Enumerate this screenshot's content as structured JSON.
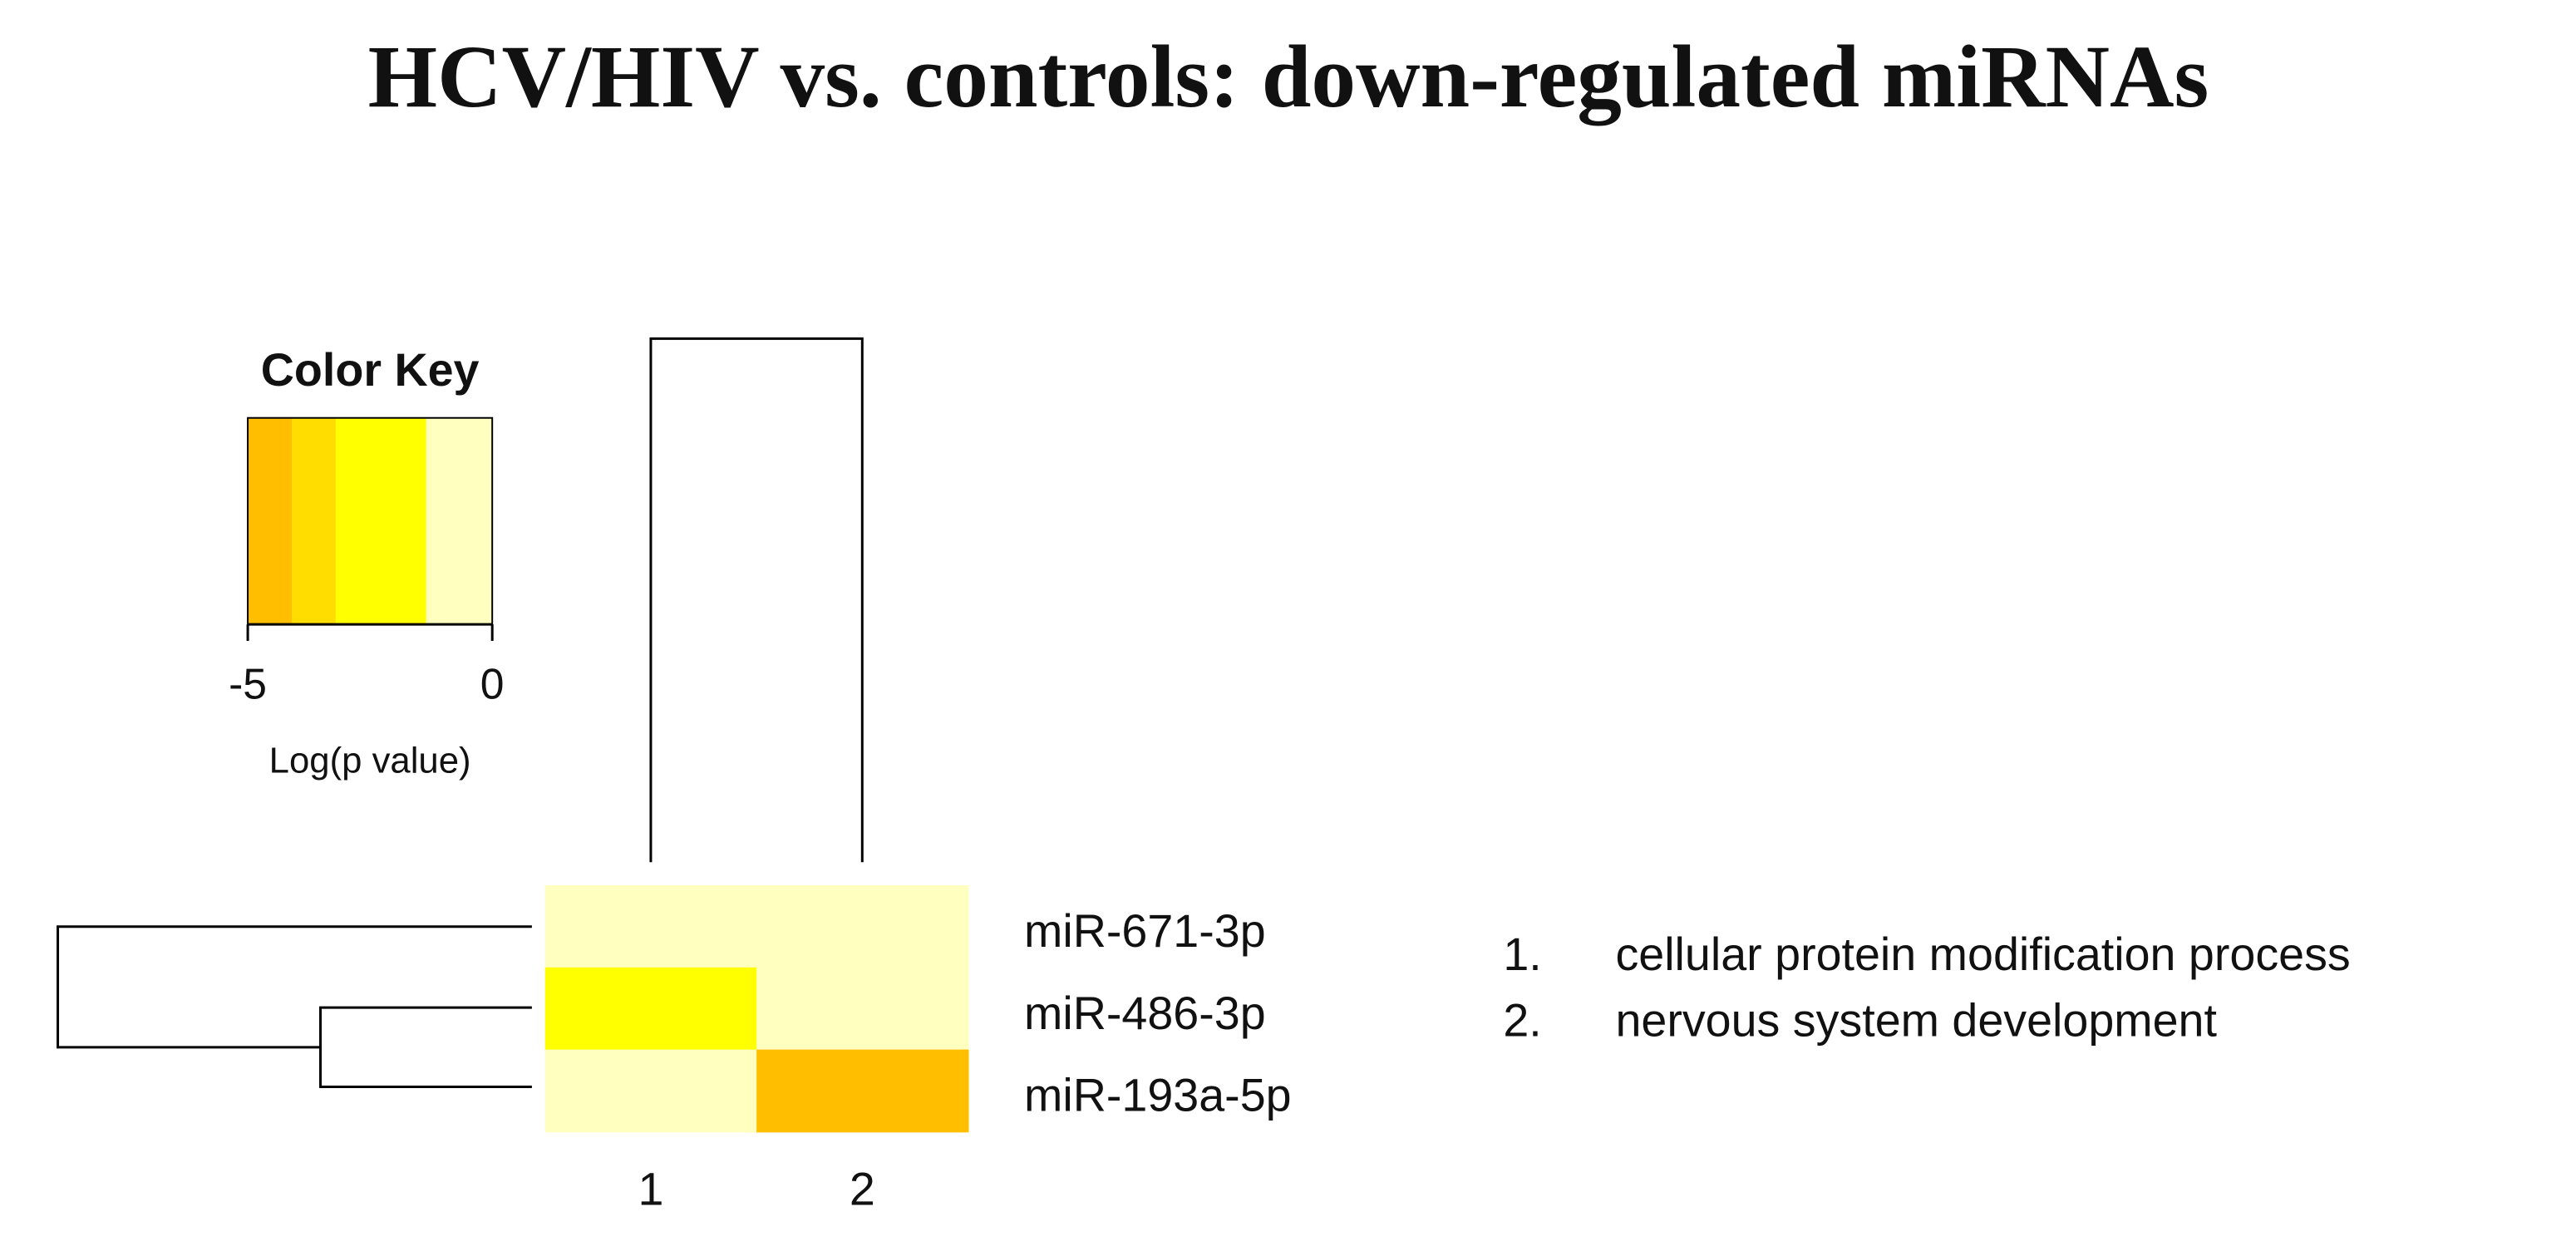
{
  "chart_data": {
    "type": "heatmap",
    "title": "HCV/HIV vs. controls: down-regulated miRNAs",
    "rows": [
      "miR-671-3p",
      "miR-486-3p",
      "miR-193a-5p"
    ],
    "columns": [
      "1",
      "2"
    ],
    "values": [
      [
        -0.5,
        -0.5
      ],
      [
        -2.5,
        -0.5
      ],
      [
        -0.5,
        -4.5
      ]
    ],
    "color_key": {
      "title": "Color Key",
      "xlabel": "Log(p value)",
      "xlim": [
        -5,
        0
      ],
      "xticks": [
        -5,
        0
      ],
      "bins": [
        -5,
        -4.1,
        -3.2,
        -1.35,
        0
      ],
      "colors": [
        "#ffbf00",
        "#ffdd00",
        "#ffff00",
        "#ffffbf"
      ]
    },
    "legend": [
      {
        "number": "1.",
        "label": "cellular protein modification process"
      },
      {
        "number": "2.",
        "label": "nervous system development"
      }
    ]
  }
}
